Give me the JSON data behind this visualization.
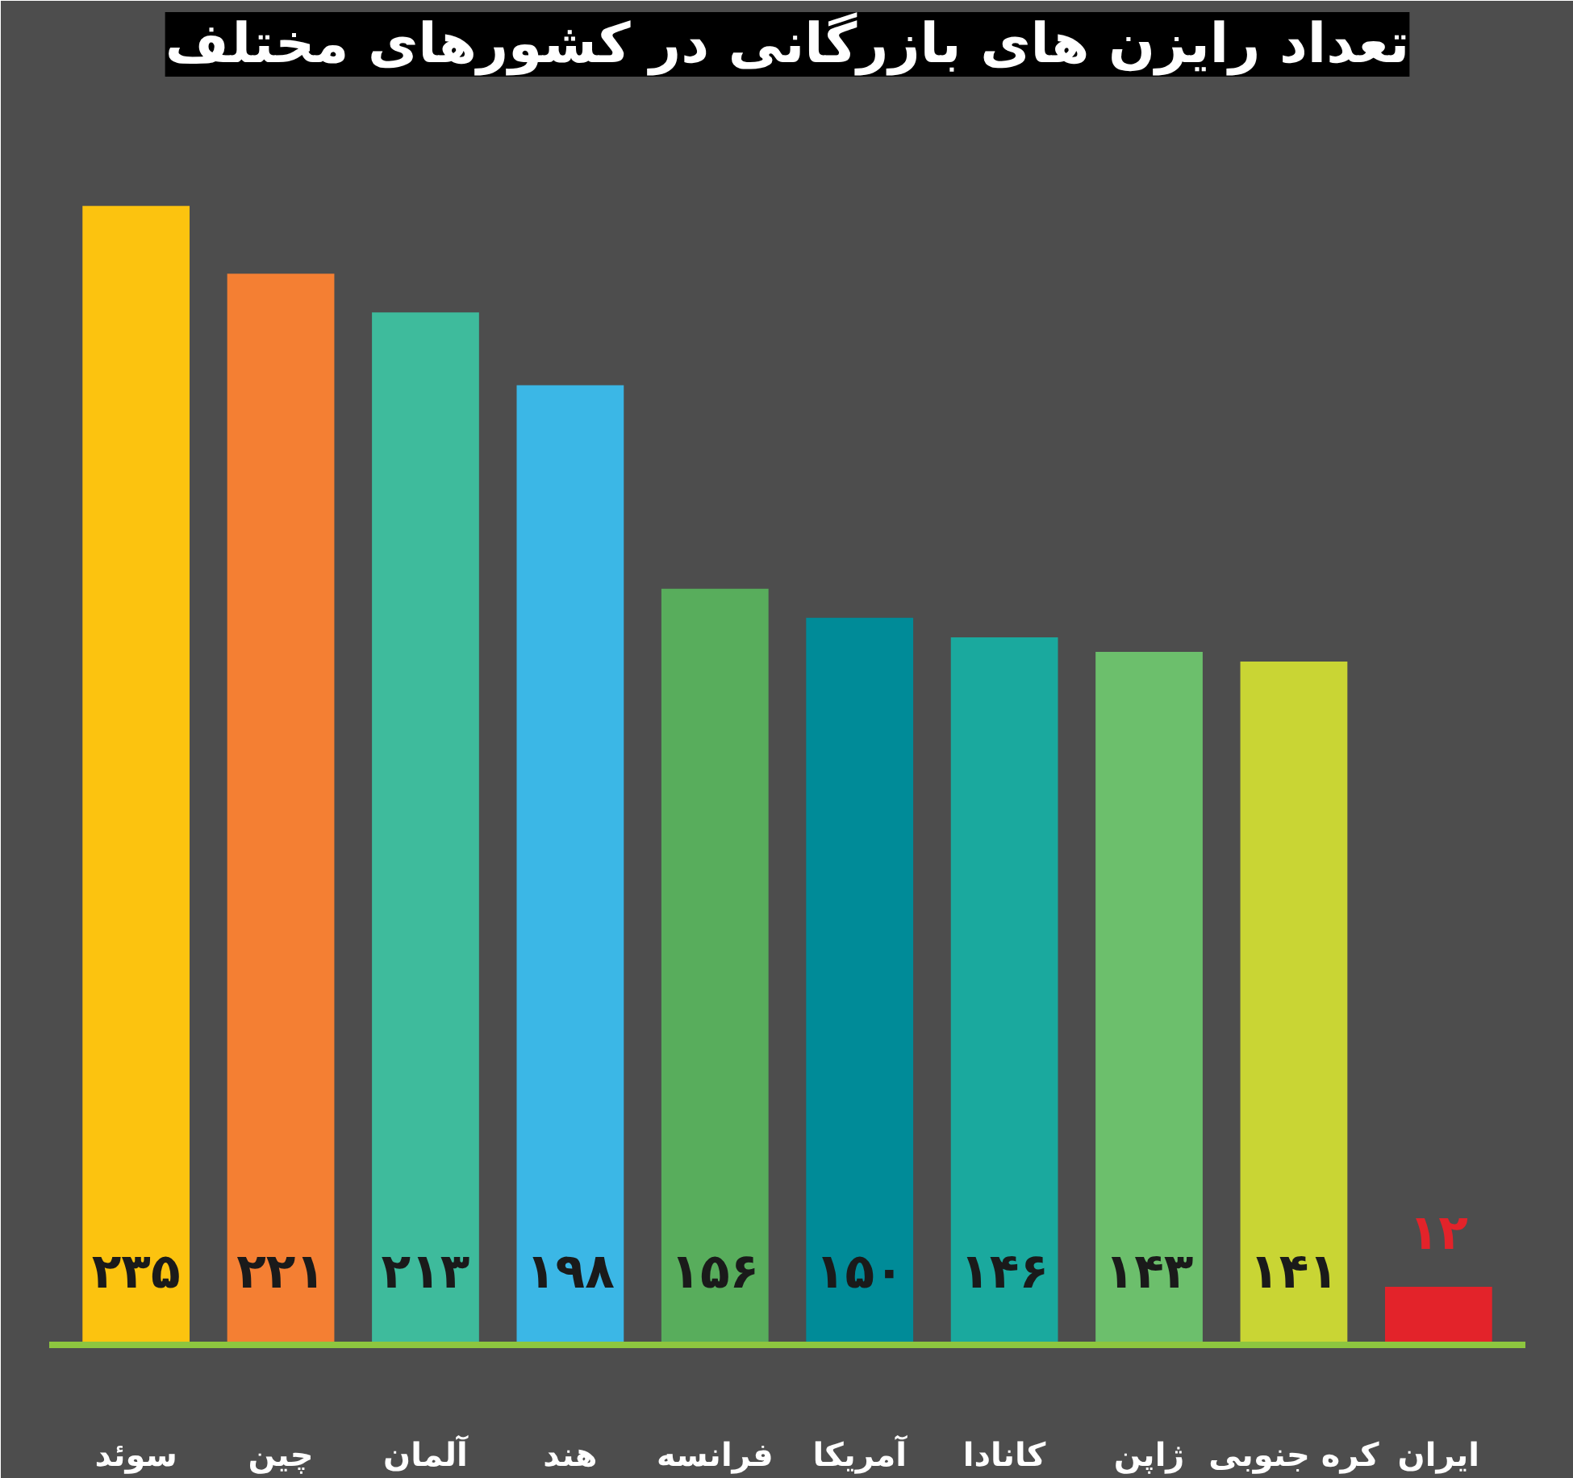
{
  "chart_data": {
    "type": "bar",
    "title": "تعداد رایزن های بازرگانی در کشورهای مختلف",
    "categories": [
      "سوئد",
      "چین",
      "آلمان",
      "هند",
      "فرانسه",
      "آمریکا",
      "کانادا",
      "ژاپن",
      "کره جنوبی",
      "ایران"
    ],
    "values": [
      235,
      221,
      213,
      198,
      156,
      150,
      146,
      143,
      141,
      12
    ],
    "colors": [
      "#fcc30f",
      "#f47f33",
      "#3ebb9c",
      "#3bb7e6",
      "#58ad5c",
      "#008b98",
      "#1aa99e",
      "#6cbf6c",
      "#c9d534",
      "#e3232a"
    ],
    "value_labels": [
      "۲۳۵",
      "۲۲۱",
      "۲۱۳",
      "۱۹۸",
      "۱۵۶",
      "۱۵۰",
      "۱۴۶",
      "۱۴۳",
      "۱۴۱",
      "۱۲"
    ],
    "ylim": [
      0,
      260
    ],
    "tick_labels": "x"
  }
}
